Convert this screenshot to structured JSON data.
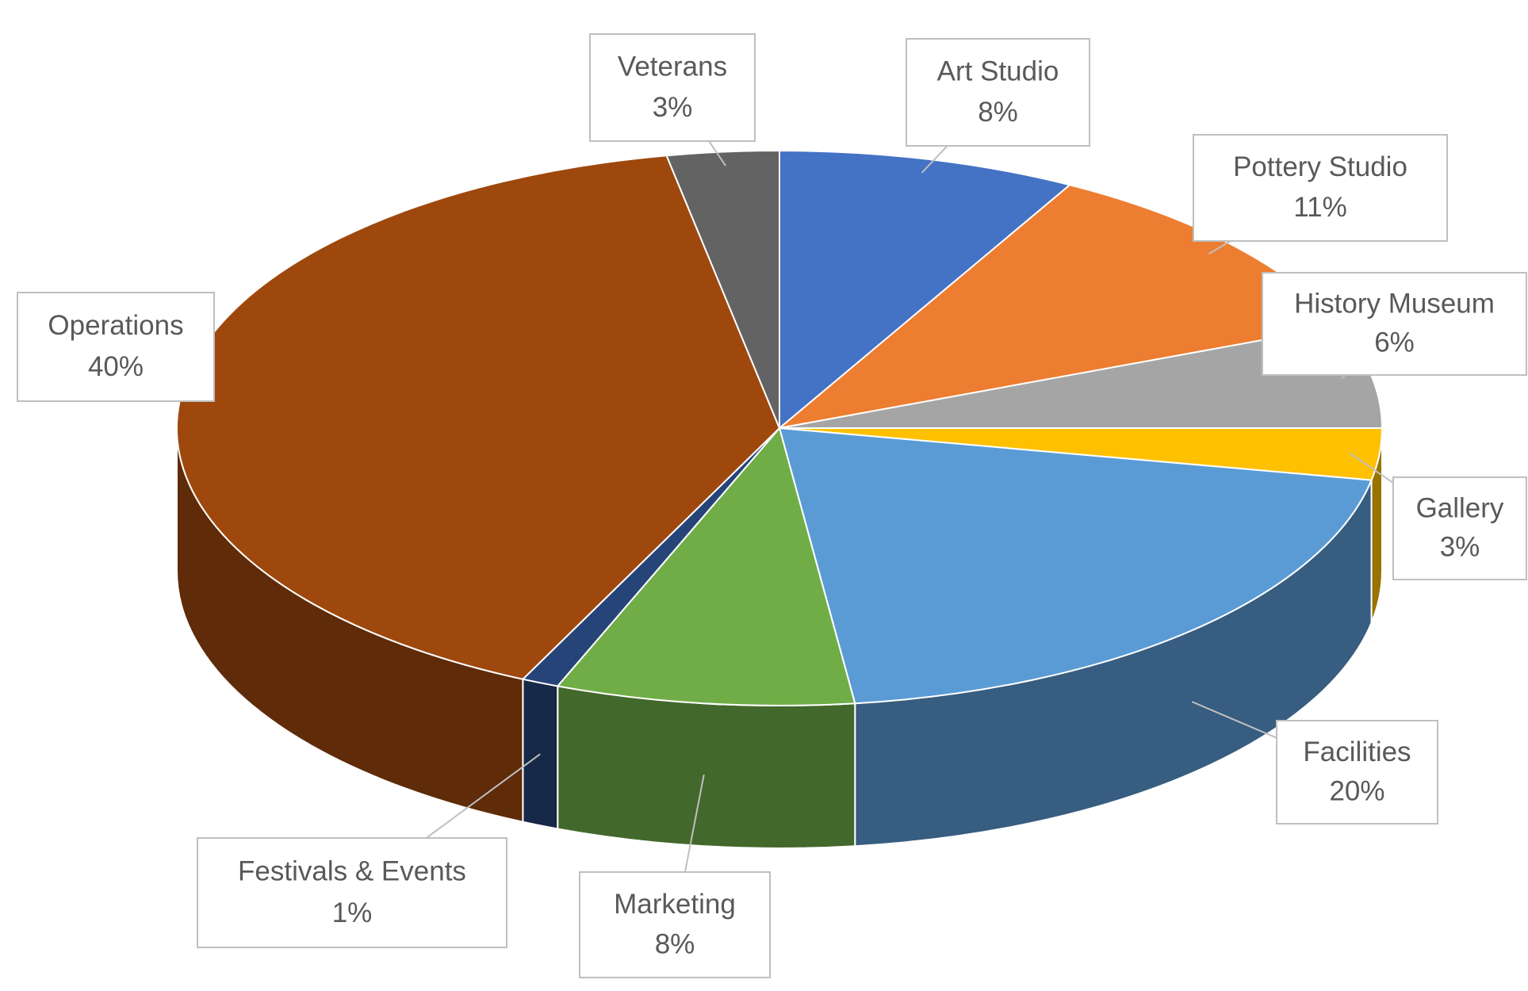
{
  "chart_data": {
    "type": "pie3d",
    "categories": [
      "Art Studio",
      "Pottery Studio",
      "History Museum",
      "Gallery",
      "Facilities",
      "Marketing",
      "Festivals & Events",
      "Operations",
      "Veterans"
    ],
    "values": [
      8,
      11,
      6,
      3,
      20,
      8,
      1,
      40,
      3
    ],
    "value_labels": [
      "8%",
      "11%",
      "6%",
      "3%",
      "20%",
      "8%",
      "1%",
      "40%",
      "3%"
    ],
    "colors": [
      "#4472c4",
      "#ed7d31",
      "#a5a5a5",
      "#ffc000",
      "#5b9bd5",
      "#70ad47",
      "#264478",
      "#9e480e",
      "#636363"
    ]
  }
}
